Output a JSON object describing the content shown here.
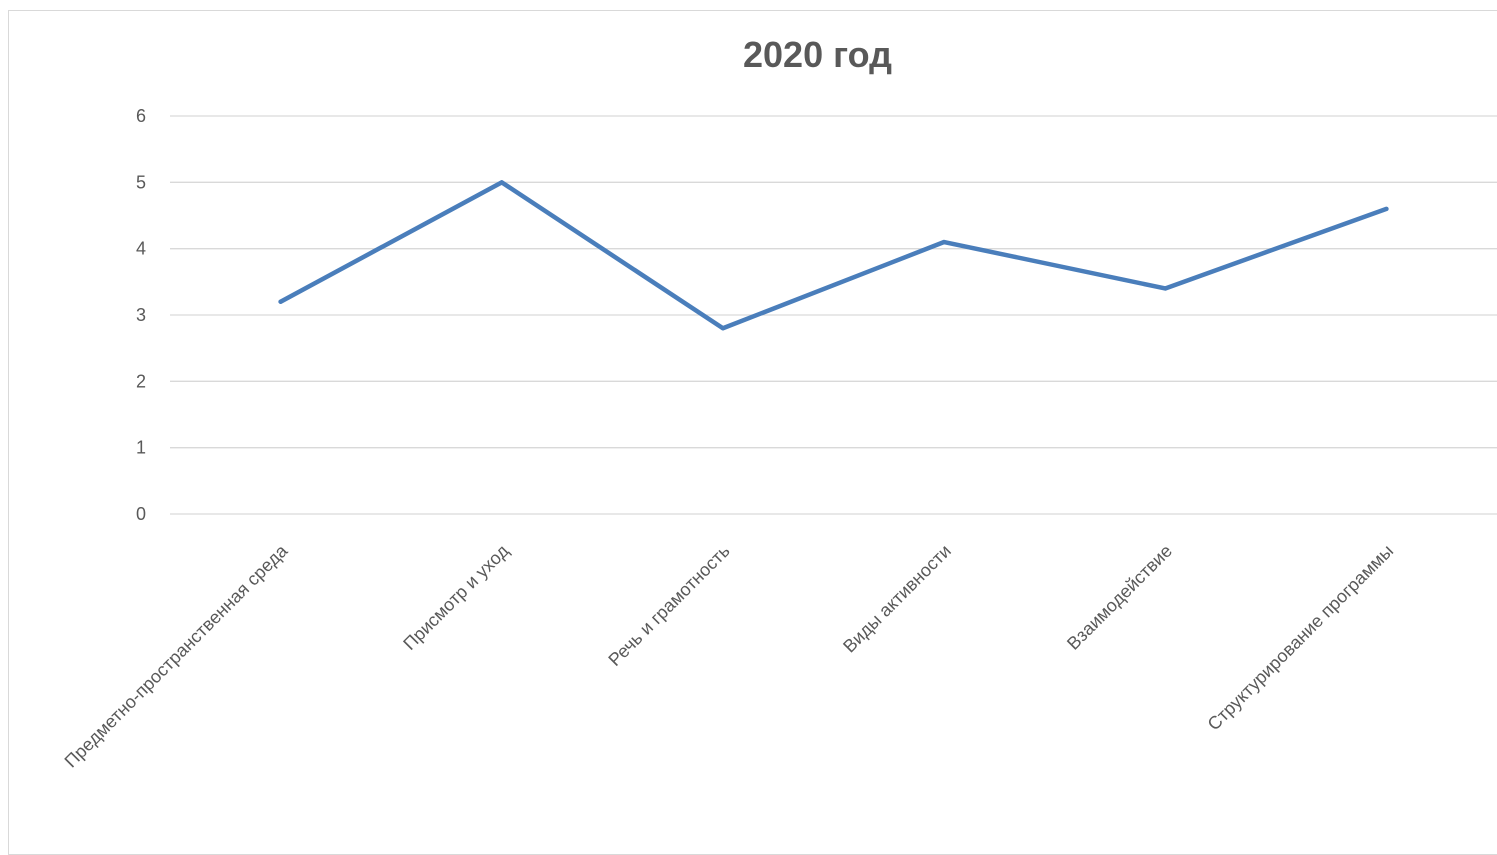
{
  "chart_data": {
    "type": "line",
    "title": "2020 год",
    "xlabel": "",
    "ylabel": "",
    "categories": [
      "Предметно-пространственная среда",
      "Присмотр и уход",
      "Речь и грамотность",
      "Виды активности",
      "Взаимодействие",
      "Структурирование программы"
    ],
    "series": [
      {
        "values": [
          3.2,
          5.0,
          2.8,
          4.1,
          3.4,
          4.6
        ],
        "color": "#4a7ebb"
      }
    ],
    "ylim": [
      0,
      6
    ],
    "yticks": [
      0,
      1,
      2,
      3,
      4,
      5,
      6
    ],
    "grid": true,
    "legend": "none",
    "colors": {
      "gridline": "#d9d9d9",
      "text": "#595959",
      "title": "#595959"
    }
  }
}
